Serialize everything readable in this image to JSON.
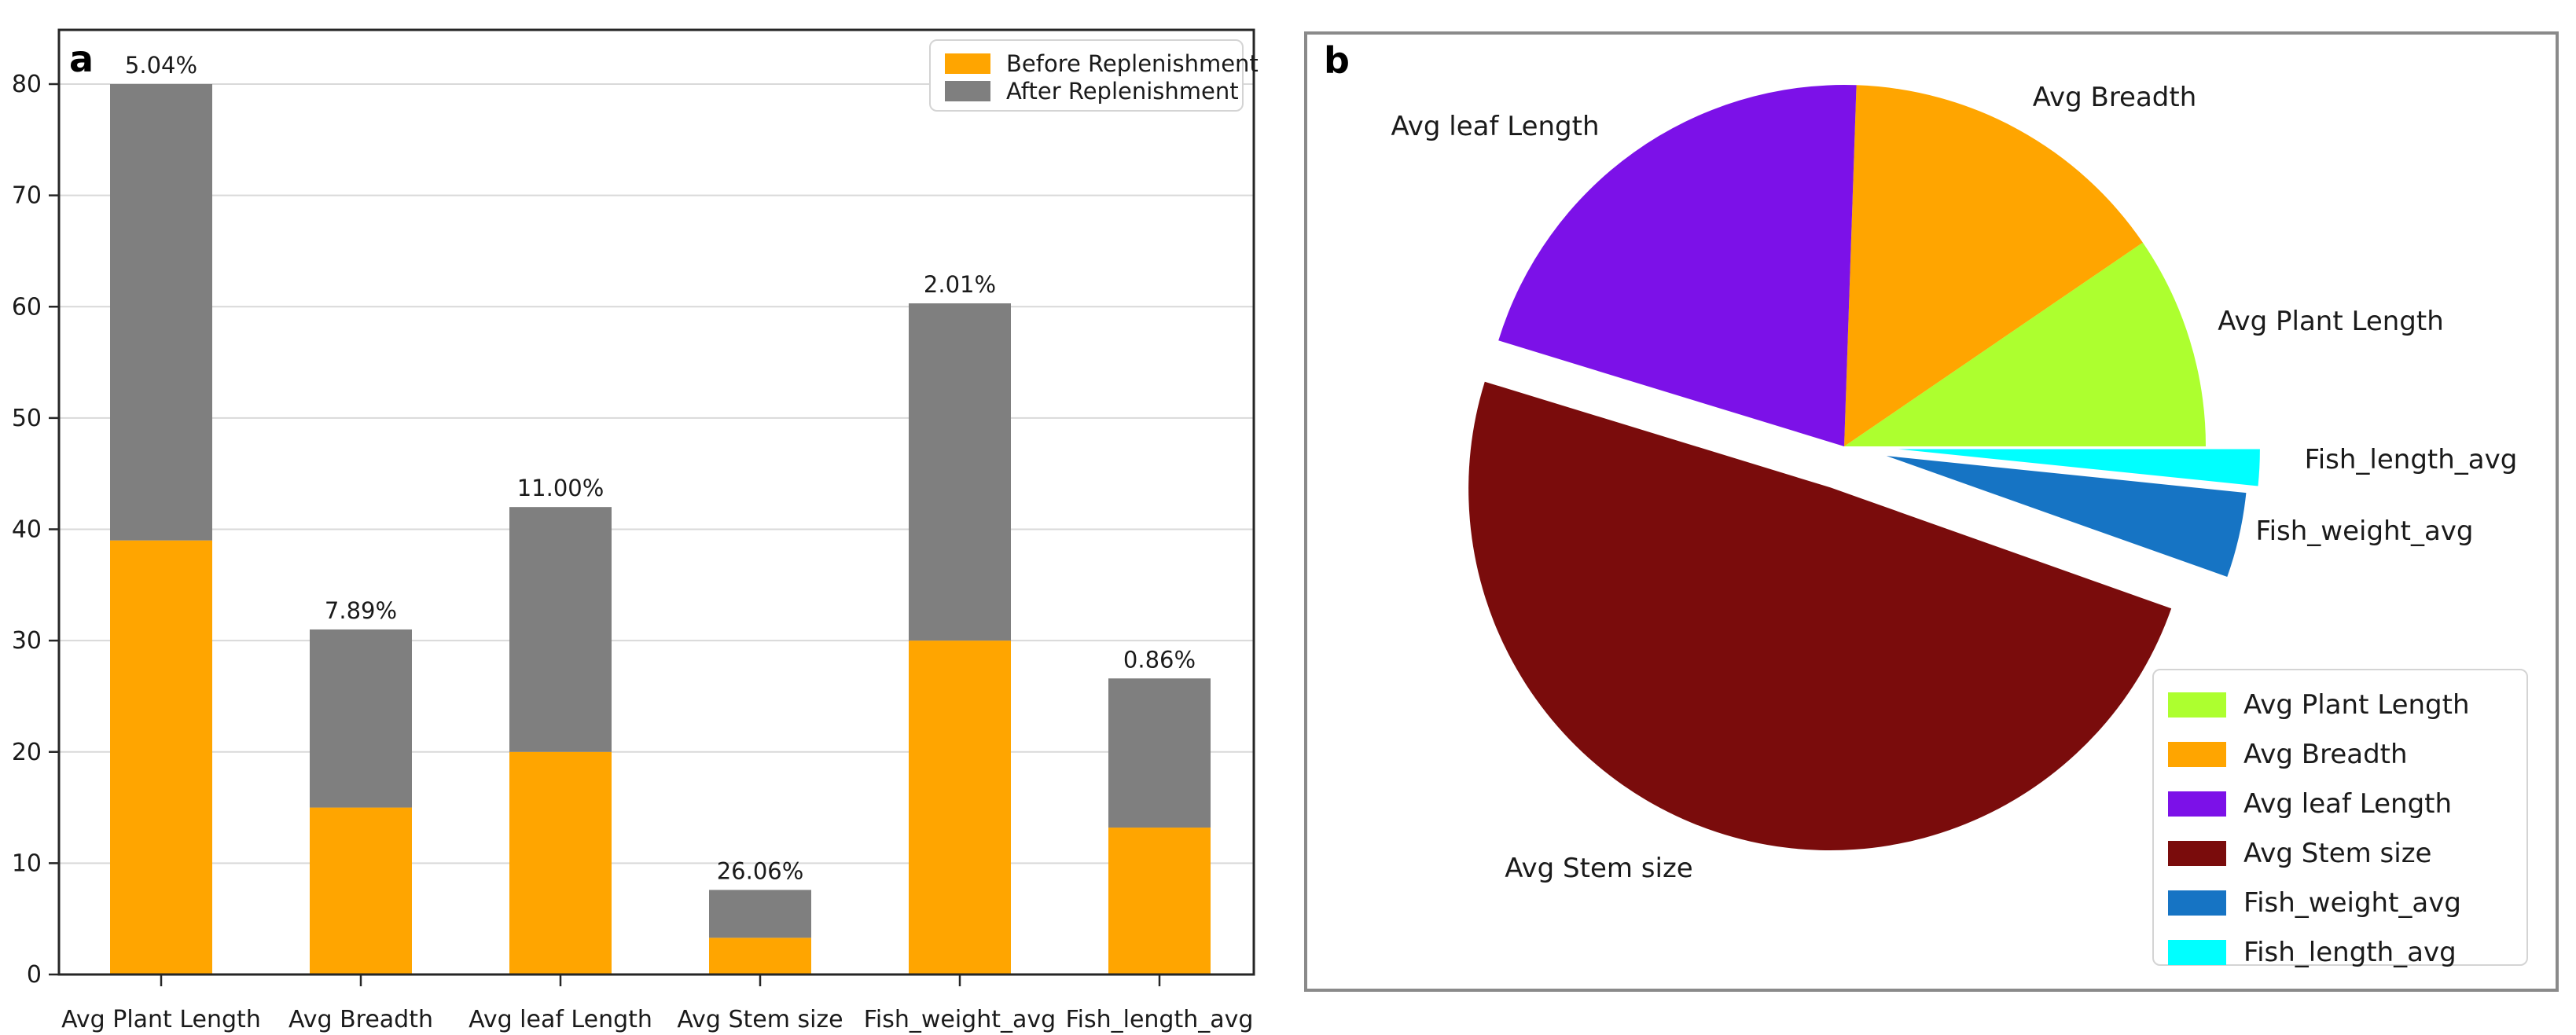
{
  "panels": {
    "a": {
      "label": "a"
    },
    "b": {
      "label": "b"
    }
  },
  "colors": {
    "before_orange": "#FFA500",
    "after_gray": "#7F7F7F",
    "text": "#1a1a1a",
    "grid": "#d9d9d9",
    "axis": "#262626",
    "panel_border": "#8a8a8a"
  },
  "chart_data": [
    {
      "id": "replenishment-stacked-bars",
      "type": "bar",
      "stacked": true,
      "categories": [
        "Avg Plant Length",
        "Avg Breadth",
        "Avg leaf Length",
        "Avg Stem size",
        "Fish_weight_avg",
        "Fish_length_avg"
      ],
      "series": [
        {
          "name": "Before Replenishment",
          "color": "#FFA500",
          "values": [
            39,
            15,
            20,
            3.3,
            30,
            13.2
          ]
        },
        {
          "name": "After Replenishment",
          "color": "#7F7F7F",
          "values": [
            41,
            16,
            22,
            4.3,
            30.3,
            13.4
          ]
        }
      ],
      "bar_labels": [
        "5.04%",
        "7.89%",
        "11.00%",
        "26.06%",
        "2.01%",
        "0.86%"
      ],
      "xlabel": "",
      "ylabel": "",
      "ylim": [
        0,
        84.9
      ],
      "yticks": [
        0,
        10,
        20,
        30,
        40,
        50,
        60,
        70,
        80
      ],
      "grid": "horizontal",
      "legend_position": "upper right"
    },
    {
      "id": "contribution-pie",
      "type": "pie",
      "labels": [
        "Avg Plant Length",
        "Avg Breadth",
        "Avg leaf Length",
        "Avg Stem size",
        "Fish_weight_avg",
        "Fish_length_avg"
      ],
      "values": [
        5.04,
        7.89,
        11.0,
        26.06,
        2.01,
        0.86
      ],
      "colors": [
        "#ADFF2F",
        "#FFA500",
        "#7C11E8",
        "#7A0C0C",
        "#1674C4",
        "#00FFFF"
      ],
      "explode": [
        0,
        0,
        0,
        0.12,
        0.12,
        0.15
      ],
      "start_angle": 0,
      "direction": "counterclockwise",
      "legend_position": "lower right"
    }
  ]
}
